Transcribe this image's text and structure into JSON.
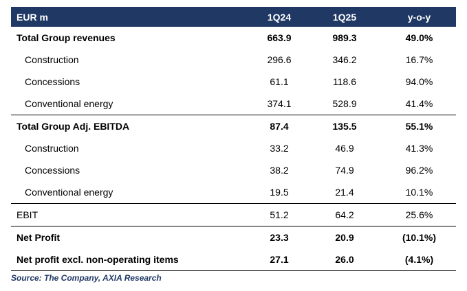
{
  "colors": {
    "header_bg": "#1f3864",
    "header_text": "#ffffff",
    "source_text": "#1f3864",
    "rule": "#000000"
  },
  "header": {
    "label": "EUR m",
    "col1": "1Q24",
    "col2": "1Q25",
    "col3": "y-o-y"
  },
  "rows": [
    {
      "label": "Total Group revenues",
      "v1": "663.9",
      "v2": "989.3",
      "v3": "49.0%"
    },
    {
      "label": "Construction",
      "v1": "296.6",
      "v2": "346.2",
      "v3": "16.7%"
    },
    {
      "label": "Concessions",
      "v1": "61.1",
      "v2": "118.6",
      "v3": "94.0%"
    },
    {
      "label": "Conventional energy",
      "v1": "374.1",
      "v2": "528.9",
      "v3": "41.4%"
    },
    {
      "label": "Total Group Adj. EBITDA",
      "v1": "87.4",
      "v2": "135.5",
      "v3": "55.1%"
    },
    {
      "label": "Construction",
      "v1": "33.2",
      "v2": "46.9",
      "v3": "41.3%"
    },
    {
      "label": "Concessions",
      "v1": "38.2",
      "v2": "74.9",
      "v3": "96.2%"
    },
    {
      "label": "Conventional energy",
      "v1": "19.5",
      "v2": "21.4",
      "v3": "10.1%"
    },
    {
      "label": "EBIT",
      "v1": "51.2",
      "v2": "64.2",
      "v3": "25.6%"
    },
    {
      "label": "Net Profit",
      "v1": "23.3",
      "v2": "20.9",
      "v3": "(10.1%)"
    },
    {
      "label": "Net profit excl. non-operating items",
      "v1": "27.1",
      "v2": "26.0",
      "v3": "(4.1%)"
    }
  ],
  "source": "Source: The Company, AXIA Research"
}
